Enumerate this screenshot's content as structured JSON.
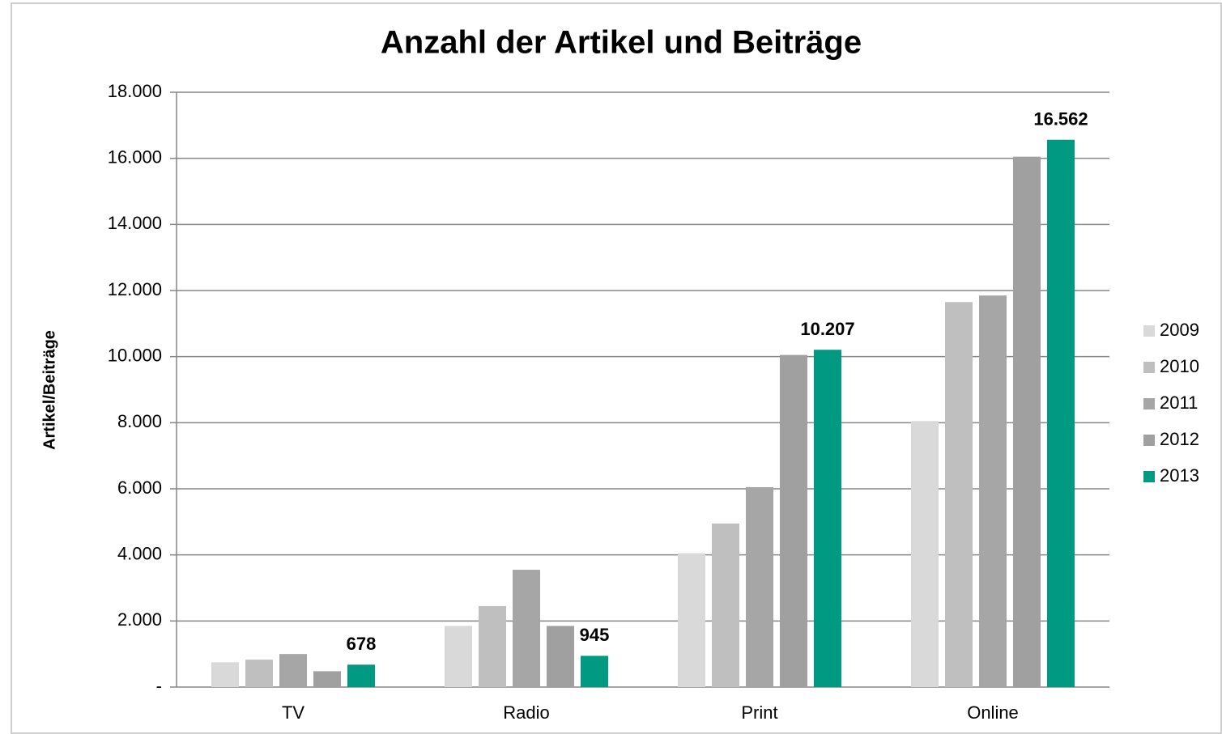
{
  "chart_data": {
    "type": "bar",
    "title": "Anzahl der Artikel und Beiträge",
    "y_label": "Artikel/Beiträge",
    "categories": [
      "TV",
      "Radio",
      "Print",
      "Online"
    ],
    "series": [
      {
        "name": "2009",
        "color": "#d9d9d9",
        "values": [
          750,
          1850,
          4050,
          8050
        ]
      },
      {
        "name": "2010",
        "color": "#bfbfbf",
        "values": [
          830,
          2450,
          4950,
          11650
        ]
      },
      {
        "name": "2011",
        "color": "#a6a6a6",
        "values": [
          1000,
          3550,
          6050,
          11850
        ]
      },
      {
        "name": "2012",
        "color": "#a0a0a0",
        "values": [
          480,
          1850,
          10050,
          16050
        ]
      },
      {
        "name": "2013",
        "color": "#009982",
        "values": [
          678,
          945,
          10207,
          16562
        ],
        "value_labels": [
          "678",
          "945",
          "10.207",
          "16.562"
        ]
      }
    ],
    "ylim": [
      0,
      18000
    ],
    "yticks": [
      {
        "value": 0,
        "label": "-"
      },
      {
        "value": 2000,
        "label": "2.000"
      },
      {
        "value": 4000,
        "label": "4.000"
      },
      {
        "value": 6000,
        "label": "6.000"
      },
      {
        "value": 8000,
        "label": "8.000"
      },
      {
        "value": 10000,
        "label": "10.000"
      },
      {
        "value": 12000,
        "label": "12.000"
      },
      {
        "value": 14000,
        "label": "14.000"
      },
      {
        "value": 16000,
        "label": "16.000"
      },
      {
        "value": 18000,
        "label": "18.000"
      }
    ],
    "grid": true,
    "legend": "right"
  }
}
